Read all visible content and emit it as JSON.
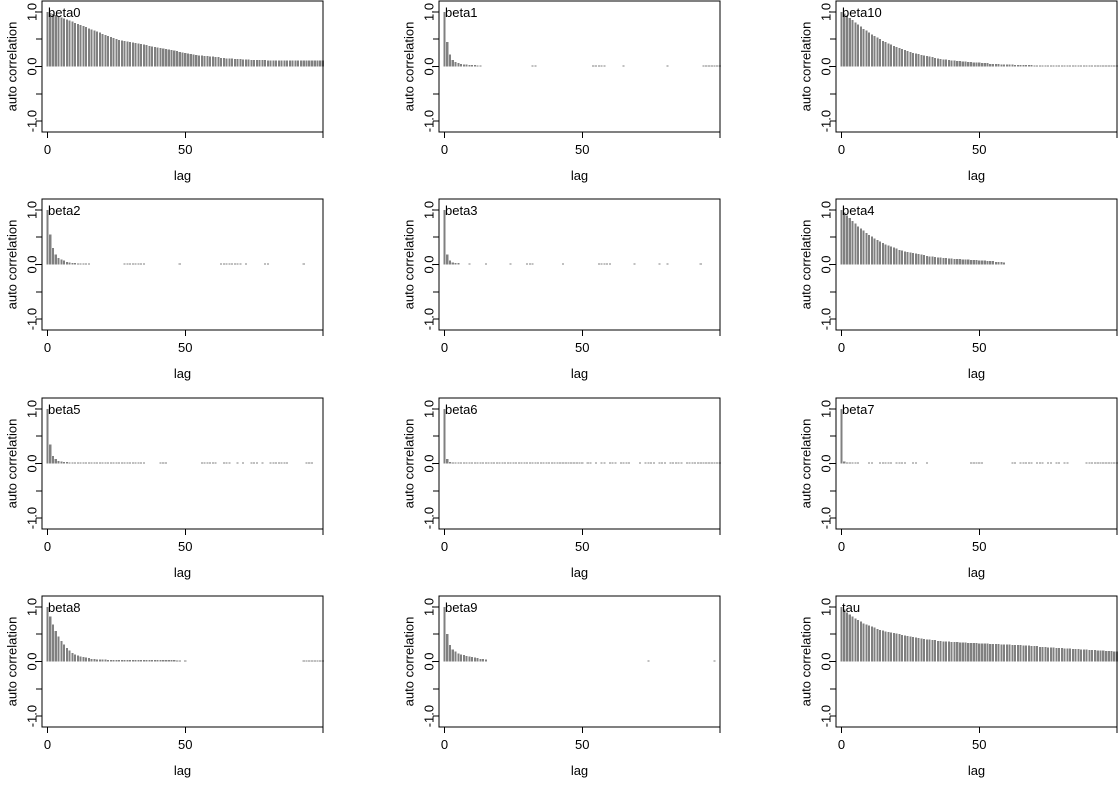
{
  "chart_data": [
    {
      "type": "bar",
      "title": "beta0",
      "xlabel": "lag",
      "ylabel": "auto correlation",
      "xticks": [
        "0",
        "50"
      ],
      "yticks": [
        "-1.0",
        "0.0",
        "1.0"
      ],
      "xlim": [
        -2,
        100
      ],
      "ylim": [
        -1.2,
        1.2
      ],
      "values": [
        1.0,
        0.98,
        0.96,
        0.94,
        0.92,
        0.9,
        0.88,
        0.86,
        0.84,
        0.82,
        0.8,
        0.78,
        0.76,
        0.74,
        0.72,
        0.7,
        0.68,
        0.66,
        0.64,
        0.62,
        0.6,
        0.58,
        0.56,
        0.54,
        0.52,
        0.5,
        0.49,
        0.48,
        0.47,
        0.46,
        0.45,
        0.44,
        0.43,
        0.42,
        0.41,
        0.4,
        0.39,
        0.38,
        0.37,
        0.36,
        0.35,
        0.34,
        0.33,
        0.32,
        0.31,
        0.3,
        0.29,
        0.28,
        0.27,
        0.26,
        0.25,
        0.24,
        0.23,
        0.22,
        0.21,
        0.2,
        0.2,
        0.19,
        0.19,
        0.18,
        0.18,
        0.17,
        0.17,
        0.16,
        0.16,
        0.15,
        0.15,
        0.15,
        0.14,
        0.14,
        0.14,
        0.13,
        0.13,
        0.13,
        0.12,
        0.12,
        0.12,
        0.12,
        0.12,
        0.12,
        0.11,
        0.11,
        0.11,
        0.11,
        0.11,
        0.11,
        0.11,
        0.11,
        0.11,
        0.11,
        0.11,
        0.11,
        0.11,
        0.11,
        0.11,
        0.11,
        0.11,
        0.11,
        0.11,
        0.11,
        0.11
      ]
    },
    {
      "type": "bar",
      "title": "beta1",
      "xlabel": "lag",
      "ylabel": "auto correlation",
      "xticks": [
        "0",
        "50"
      ],
      "yticks": [
        "-1.0",
        "0.0",
        "1.0"
      ],
      "xlim": [
        -2,
        100
      ],
      "ylim": [
        -1.2,
        1.2
      ],
      "values": [
        1.0,
        0.45,
        0.22,
        0.12,
        0.08,
        0.06,
        0.05,
        0.04,
        0.04,
        0.03,
        0.03,
        0.03,
        0.02,
        0.02,
        0,
        0,
        0,
        0,
        0,
        0,
        0,
        0,
        0,
        0,
        0,
        0,
        0,
        0,
        0,
        0,
        0,
        0,
        0.02,
        0.02,
        0,
        0,
        0,
        0,
        0,
        0,
        0,
        0,
        0,
        0,
        0,
        0,
        0,
        0,
        0,
        0,
        0,
        0,
        0,
        0,
        0.02,
        0.02,
        0.02,
        0.02,
        0.02,
        0,
        0,
        0,
        0,
        0,
        0,
        0.02,
        0,
        0,
        0,
        0,
        0,
        0,
        0,
        0,
        0,
        0,
        0,
        0,
        0,
        0,
        0,
        0.02,
        0,
        0,
        0,
        0,
        0,
        0,
        0,
        0,
        0,
        0,
        0,
        0,
        0.02,
        0.02,
        0.02,
        0.02,
        0.02,
        0.02,
        0.02
      ]
    },
    {
      "type": "bar",
      "title": "beta10",
      "xlabel": "lag",
      "ylabel": "auto correlation",
      "xticks": [
        "0",
        "50"
      ],
      "yticks": [
        "-1.0",
        "0.0",
        "1.0"
      ],
      "xlim": [
        -2,
        100
      ],
      "ylim": [
        -1.2,
        1.2
      ],
      "values": [
        1.0,
        0.97,
        0.93,
        0.89,
        0.85,
        0.81,
        0.77,
        0.73,
        0.69,
        0.66,
        0.62,
        0.59,
        0.56,
        0.53,
        0.5,
        0.47,
        0.45,
        0.42,
        0.4,
        0.38,
        0.36,
        0.34,
        0.32,
        0.3,
        0.28,
        0.27,
        0.25,
        0.24,
        0.23,
        0.21,
        0.2,
        0.19,
        0.18,
        0.17,
        0.16,
        0.15,
        0.14,
        0.13,
        0.13,
        0.12,
        0.11,
        0.11,
        0.1,
        0.1,
        0.09,
        0.09,
        0.08,
        0.08,
        0.07,
        0.07,
        0.07,
        0.06,
        0.06,
        0.06,
        0.05,
        0.05,
        0.05,
        0.05,
        0.04,
        0.04,
        0.04,
        0.04,
        0.04,
        0.03,
        0.03,
        0.03,
        0.03,
        0.03,
        0.03,
        0.03,
        0.02,
        0.02,
        0.02,
        0.02,
        0.02,
        0.02,
        0.02,
        0.02,
        0.02,
        0.02,
        0.02,
        0.02,
        0.02,
        0.02,
        0.02,
        0.02,
        0.02,
        0.02,
        0.02,
        0.02,
        0.02,
        0.02,
        0.02,
        0.02,
        0.02,
        0.02,
        0.02,
        0.02,
        0.02,
        0.02,
        0.02
      ]
    },
    {
      "type": "bar",
      "title": "beta2",
      "xlabel": "lag",
      "ylabel": "auto correlation",
      "xticks": [
        "0",
        "50"
      ],
      "yticks": [
        "-1.0",
        "0.0",
        "1.0"
      ],
      "xlim": [
        -2,
        100
      ],
      "ylim": [
        -1.2,
        1.2
      ],
      "values": [
        1.0,
        0.55,
        0.3,
        0.18,
        0.12,
        0.09,
        0.07,
        0.05,
        0.04,
        0.03,
        0.03,
        0.02,
        0.02,
        0.02,
        0.02,
        0.02,
        0,
        0,
        0,
        0,
        0,
        0,
        0,
        0,
        0,
        0,
        0,
        0,
        0.02,
        0.02,
        0.02,
        0.02,
        0.02,
        0.02,
        0.02,
        0.02,
        0,
        0,
        0,
        0,
        0,
        0,
        0,
        0,
        0,
        0,
        0,
        0,
        0.02,
        0,
        0,
        0,
        0,
        0,
        0,
        0,
        0,
        0,
        0,
        0,
        0,
        0,
        0,
        0.02,
        0.02,
        0.02,
        0.02,
        0.02,
        0.02,
        0.02,
        0.02,
        0,
        0.02,
        0,
        0,
        0,
        0,
        0,
        0,
        0.02,
        0.02,
        0,
        0,
        0,
        0,
        0,
        0,
        0,
        0,
        0,
        0,
        0,
        0,
        0.02,
        0,
        0,
        0,
        0,
        0,
        0,
        0
      ]
    },
    {
      "type": "bar",
      "title": "beta3",
      "xlabel": "lag",
      "ylabel": "auto correlation",
      "xticks": [
        "0",
        "50"
      ],
      "yticks": [
        "-1.0",
        "0.0",
        "1.0"
      ],
      "xlim": [
        -2,
        100
      ],
      "ylim": [
        -1.2,
        1.2
      ],
      "values": [
        1.0,
        0.18,
        0.07,
        0.04,
        0.03,
        0.03,
        0,
        0,
        0,
        0.02,
        0,
        0,
        0,
        0,
        0,
        0.02,
        0,
        0,
        0,
        0,
        0,
        0,
        0,
        0,
        0.02,
        0,
        0,
        0,
        0,
        0,
        0.02,
        0.02,
        0.02,
        0,
        0,
        0,
        0,
        0,
        0,
        0,
        0,
        0,
        0,
        0.02,
        0,
        0,
        0,
        0,
        0,
        0,
        0,
        0,
        0,
        0,
        0,
        0,
        0.02,
        0.02,
        0.02,
        0.02,
        0.02,
        0,
        0,
        0,
        0,
        0,
        0,
        0,
        0,
        0.02,
        0,
        0,
        0,
        0,
        0,
        0,
        0,
        0,
        0.02,
        0,
        0,
        0.02,
        0,
        0,
        0,
        0,
        0,
        0,
        0,
        0,
        0,
        0,
        0,
        0.02,
        0,
        0,
        0,
        0,
        0,
        0,
        0
      ]
    },
    {
      "type": "bar",
      "title": "beta4",
      "xlabel": "lag",
      "ylabel": "auto correlation",
      "xticks": [
        "0",
        "50"
      ],
      "yticks": [
        "-1.0",
        "0.0",
        "1.0"
      ],
      "xlim": [
        -2,
        100
      ],
      "ylim": [
        -1.2,
        1.2
      ],
      "values": [
        1.0,
        0.95,
        0.9,
        0.85,
        0.8,
        0.75,
        0.7,
        0.66,
        0.62,
        0.58,
        0.54,
        0.51,
        0.48,
        0.45,
        0.42,
        0.39,
        0.37,
        0.35,
        0.33,
        0.31,
        0.29,
        0.27,
        0.26,
        0.24,
        0.23,
        0.22,
        0.21,
        0.2,
        0.19,
        0.18,
        0.17,
        0.16,
        0.15,
        0.15,
        0.14,
        0.13,
        0.13,
        0.12,
        0.12,
        0.11,
        0.11,
        0.1,
        0.1,
        0.1,
        0.09,
        0.09,
        0.09,
        0.08,
        0.08,
        0.08,
        0.07,
        0.07,
        0.07,
        0.06,
        0.06,
        0.06,
        0.05,
        0.05,
        0.05,
        0.04
      ]
    },
    {
      "type": "bar",
      "title": "beta5",
      "xlabel": "lag",
      "ylabel": "auto correlation",
      "xticks": [
        "0",
        "50"
      ],
      "yticks": [
        "-1.0",
        "0.0",
        "1.0"
      ],
      "xlim": [
        -2,
        100
      ],
      "ylim": [
        -1.2,
        1.2
      ],
      "values": [
        1.0,
        0.35,
        0.14,
        0.08,
        0.05,
        0.04,
        0.03,
        0.03,
        0.02,
        0.02,
        0.02,
        0.02,
        0.02,
        0.02,
        0.02,
        0.02,
        0.02,
        0.02,
        0.02,
        0.02,
        0.02,
        0.02,
        0.02,
        0.02,
        0.02,
        0.02,
        0.02,
        0.02,
        0.02,
        0.02,
        0.02,
        0.02,
        0.02,
        0.02,
        0.02,
        0.02,
        0,
        0,
        0,
        0,
        0,
        0.02,
        0.02,
        0.02,
        0,
        0,
        0,
        0,
        0,
        0,
        0,
        0,
        0,
        0,
        0,
        0,
        0.02,
        0.02,
        0.02,
        0.02,
        0.02,
        0.02,
        0,
        0,
        0.02,
        0.02,
        0.02,
        0,
        0,
        0.02,
        0,
        0.02,
        0,
        0,
        0.02,
        0.02,
        0.02,
        0,
        0.02,
        0,
        0,
        0.02,
        0.02,
        0.02,
        0.02,
        0.02,
        0.02,
        0.02,
        0,
        0,
        0,
        0,
        0,
        0,
        0.02,
        0.02,
        0.02,
        0,
        0,
        0,
        0
      ]
    },
    {
      "type": "bar",
      "title": "beta6",
      "xlabel": "lag",
      "ylabel": "auto correlation",
      "xticks": [
        "0",
        "50"
      ],
      "yticks": [
        "-1.0",
        "0.0",
        "1.0"
      ],
      "xlim": [
        -2,
        100
      ],
      "ylim": [
        -1.2,
        1.2
      ],
      "values": [
        1.0,
        0.08,
        0.03,
        0.02,
        0.02,
        0.02,
        0.02,
        0.02,
        0.02,
        0.02,
        0.02,
        0.02,
        0.02,
        0.02,
        0.02,
        0.02,
        0.02,
        0.02,
        0.02,
        0.02,
        0.02,
        0.02,
        0.02,
        0.02,
        0.02,
        0.02,
        0.02,
        0.02,
        0.02,
        0.02,
        0.02,
        0.02,
        0.02,
        0.02,
        0.02,
        0.02,
        0.02,
        0.02,
        0.02,
        0.02,
        0.02,
        0.02,
        0.02,
        0.02,
        0.02,
        0.02,
        0.02,
        0.02,
        0.02,
        0.02,
        0.02,
        0,
        0.02,
        0.02,
        0,
        0.02,
        0,
        0.02,
        0.02,
        0,
        0.02,
        0.02,
        0.02,
        0,
        0.02,
        0.02,
        0.02,
        0.02,
        0,
        0,
        0,
        0.02,
        0,
        0.02,
        0.02,
        0.02,
        0.02,
        0,
        0.02,
        0.02,
        0.02,
        0,
        0.02,
        0.02,
        0.02,
        0.02,
        0.02,
        0,
        0.02,
        0.02,
        0.02,
        0.02,
        0.02,
        0.02,
        0.02,
        0.02,
        0.02,
        0.02,
        0.02,
        0.02,
        0.02
      ]
    },
    {
      "type": "bar",
      "title": "beta7",
      "xlabel": "lag",
      "ylabel": "auto correlation",
      "xticks": [
        "0",
        "50"
      ],
      "yticks": [
        "-1.0",
        "0.0",
        "1.0"
      ],
      "xlim": [
        -2,
        100
      ],
      "ylim": [
        -1.2,
        1.2
      ],
      "values": [
        1.0,
        0.04,
        0.02,
        0.02,
        0.02,
        0.02,
        0.02,
        0,
        0,
        0,
        0.02,
        0.02,
        0,
        0,
        0.02,
        0.02,
        0.02,
        0.02,
        0.02,
        0,
        0.02,
        0.02,
        0.02,
        0.02,
        0,
        0,
        0.02,
        0.02,
        0,
        0,
        0,
        0.02,
        0,
        0,
        0,
        0,
        0,
        0,
        0,
        0,
        0,
        0,
        0,
        0,
        0,
        0,
        0,
        0.02,
        0.02,
        0.02,
        0.02,
        0.02,
        0,
        0,
        0,
        0,
        0,
        0,
        0,
        0,
        0,
        0,
        0.02,
        0.02,
        0,
        0.02,
        0.02,
        0.02,
        0.02,
        0.02,
        0,
        0.02,
        0.02,
        0.02,
        0,
        0.02,
        0.02,
        0,
        0.02,
        0.02,
        0,
        0.02,
        0.02,
        0,
        0,
        0,
        0,
        0,
        0,
        0.02,
        0.02,
        0.02,
        0.02,
        0.02,
        0.02,
        0.02,
        0.02,
        0.02,
        0.02,
        0.02,
        0.02
      ]
    },
    {
      "type": "bar",
      "title": "beta8",
      "xlabel": "lag",
      "ylabel": "auto correlation",
      "xticks": [
        "0",
        "50"
      ],
      "yticks": [
        "-1.0",
        "0.0",
        "1.0"
      ],
      "xlim": [
        -2,
        100
      ],
      "ylim": [
        -1.2,
        1.2
      ],
      "values": [
        1.0,
        0.82,
        0.68,
        0.56,
        0.46,
        0.38,
        0.31,
        0.25,
        0.2,
        0.16,
        0.13,
        0.11,
        0.09,
        0.08,
        0.07,
        0.06,
        0.05,
        0.05,
        0.04,
        0.04,
        0.04,
        0.04,
        0.03,
        0.03,
        0.03,
        0.03,
        0.03,
        0.03,
        0.03,
        0.03,
        0.03,
        0.03,
        0.03,
        0.03,
        0.03,
        0.03,
        0.03,
        0.03,
        0.03,
        0.03,
        0.03,
        0.03,
        0.03,
        0.03,
        0.03,
        0.03,
        0.03,
        0.02,
        0.02,
        0,
        0.02,
        0,
        0,
        0,
        0,
        0,
        0,
        0,
        0,
        0,
        0,
        0,
        0,
        0,
        0,
        0,
        0,
        0,
        0,
        0,
        0,
        0,
        0,
        0,
        0,
        0,
        0,
        0,
        0,
        0,
        0,
        0,
        0,
        0,
        0,
        0,
        0,
        0,
        0,
        0,
        0,
        0,
        0,
        0.02,
        0.02,
        0.02,
        0.02,
        0.02,
        0.02,
        0.02,
        0.02
      ]
    },
    {
      "type": "bar",
      "title": "beta9",
      "xlabel": "lag",
      "ylabel": "auto correlation",
      "xticks": [
        "0",
        "50"
      ],
      "yticks": [
        "-1.0",
        "0.0",
        "1.0"
      ],
      "xlim": [
        -2,
        100
      ],
      "ylim": [
        -1.2,
        1.2
      ],
      "values": [
        1.0,
        0.5,
        0.3,
        0.22,
        0.18,
        0.15,
        0.13,
        0.12,
        0.1,
        0.09,
        0.08,
        0.07,
        0.06,
        0.05,
        0.05,
        0.04,
        0,
        0,
        0,
        0,
        0,
        0,
        0,
        0,
        0,
        0,
        0,
        0,
        0,
        0,
        0,
        0,
        0,
        0,
        0,
        0,
        0,
        0,
        0,
        0,
        0,
        0,
        0,
        0,
        0,
        0,
        0,
        0,
        0,
        0,
        0,
        0,
        0,
        0,
        0,
        0,
        0,
        0,
        0,
        0,
        0,
        0,
        0,
        0,
        0,
        0,
        0,
        0,
        0,
        0,
        0,
        0,
        0,
        0,
        0.02,
        0,
        0,
        0,
        0,
        0,
        0,
        0,
        0,
        0,
        0,
        0,
        0,
        0,
        0,
        0,
        0,
        0,
        0,
        0,
        0,
        0,
        0,
        0,
        0.02,
        0,
        0
      ]
    },
    {
      "type": "bar",
      "title": "tau",
      "xlabel": "lag",
      "ylabel": "auto correlation",
      "xticks": [
        "0",
        "50"
      ],
      "yticks": [
        "-1.0",
        "0.0",
        "1.0"
      ],
      "xlim": [
        -2,
        100
      ],
      "ylim": [
        -1.2,
        1.2
      ],
      "values": [
        1.0,
        0.95,
        0.9,
        0.86,
        0.82,
        0.79,
        0.76,
        0.73,
        0.7,
        0.68,
        0.66,
        0.64,
        0.62,
        0.6,
        0.58,
        0.57,
        0.55,
        0.54,
        0.53,
        0.52,
        0.51,
        0.5,
        0.49,
        0.48,
        0.47,
        0.46,
        0.45,
        0.44,
        0.43,
        0.42,
        0.41,
        0.4,
        0.4,
        0.39,
        0.39,
        0.38,
        0.38,
        0.37,
        0.37,
        0.37,
        0.36,
        0.36,
        0.36,
        0.35,
        0.35,
        0.35,
        0.34,
        0.34,
        0.34,
        0.34,
        0.33,
        0.33,
        0.33,
        0.33,
        0.32,
        0.32,
        0.32,
        0.32,
        0.31,
        0.31,
        0.31,
        0.31,
        0.3,
        0.3,
        0.3,
        0.3,
        0.29,
        0.29,
        0.29,
        0.28,
        0.28,
        0.28,
        0.27,
        0.27,
        0.27,
        0.26,
        0.26,
        0.26,
        0.25,
        0.25,
        0.25,
        0.24,
        0.24,
        0.24,
        0.23,
        0.23,
        0.23,
        0.22,
        0.22,
        0.22,
        0.21,
        0.21,
        0.21,
        0.2,
        0.2,
        0.2,
        0.19,
        0.19,
        0.19,
        0.18,
        0.18
      ]
    }
  ]
}
